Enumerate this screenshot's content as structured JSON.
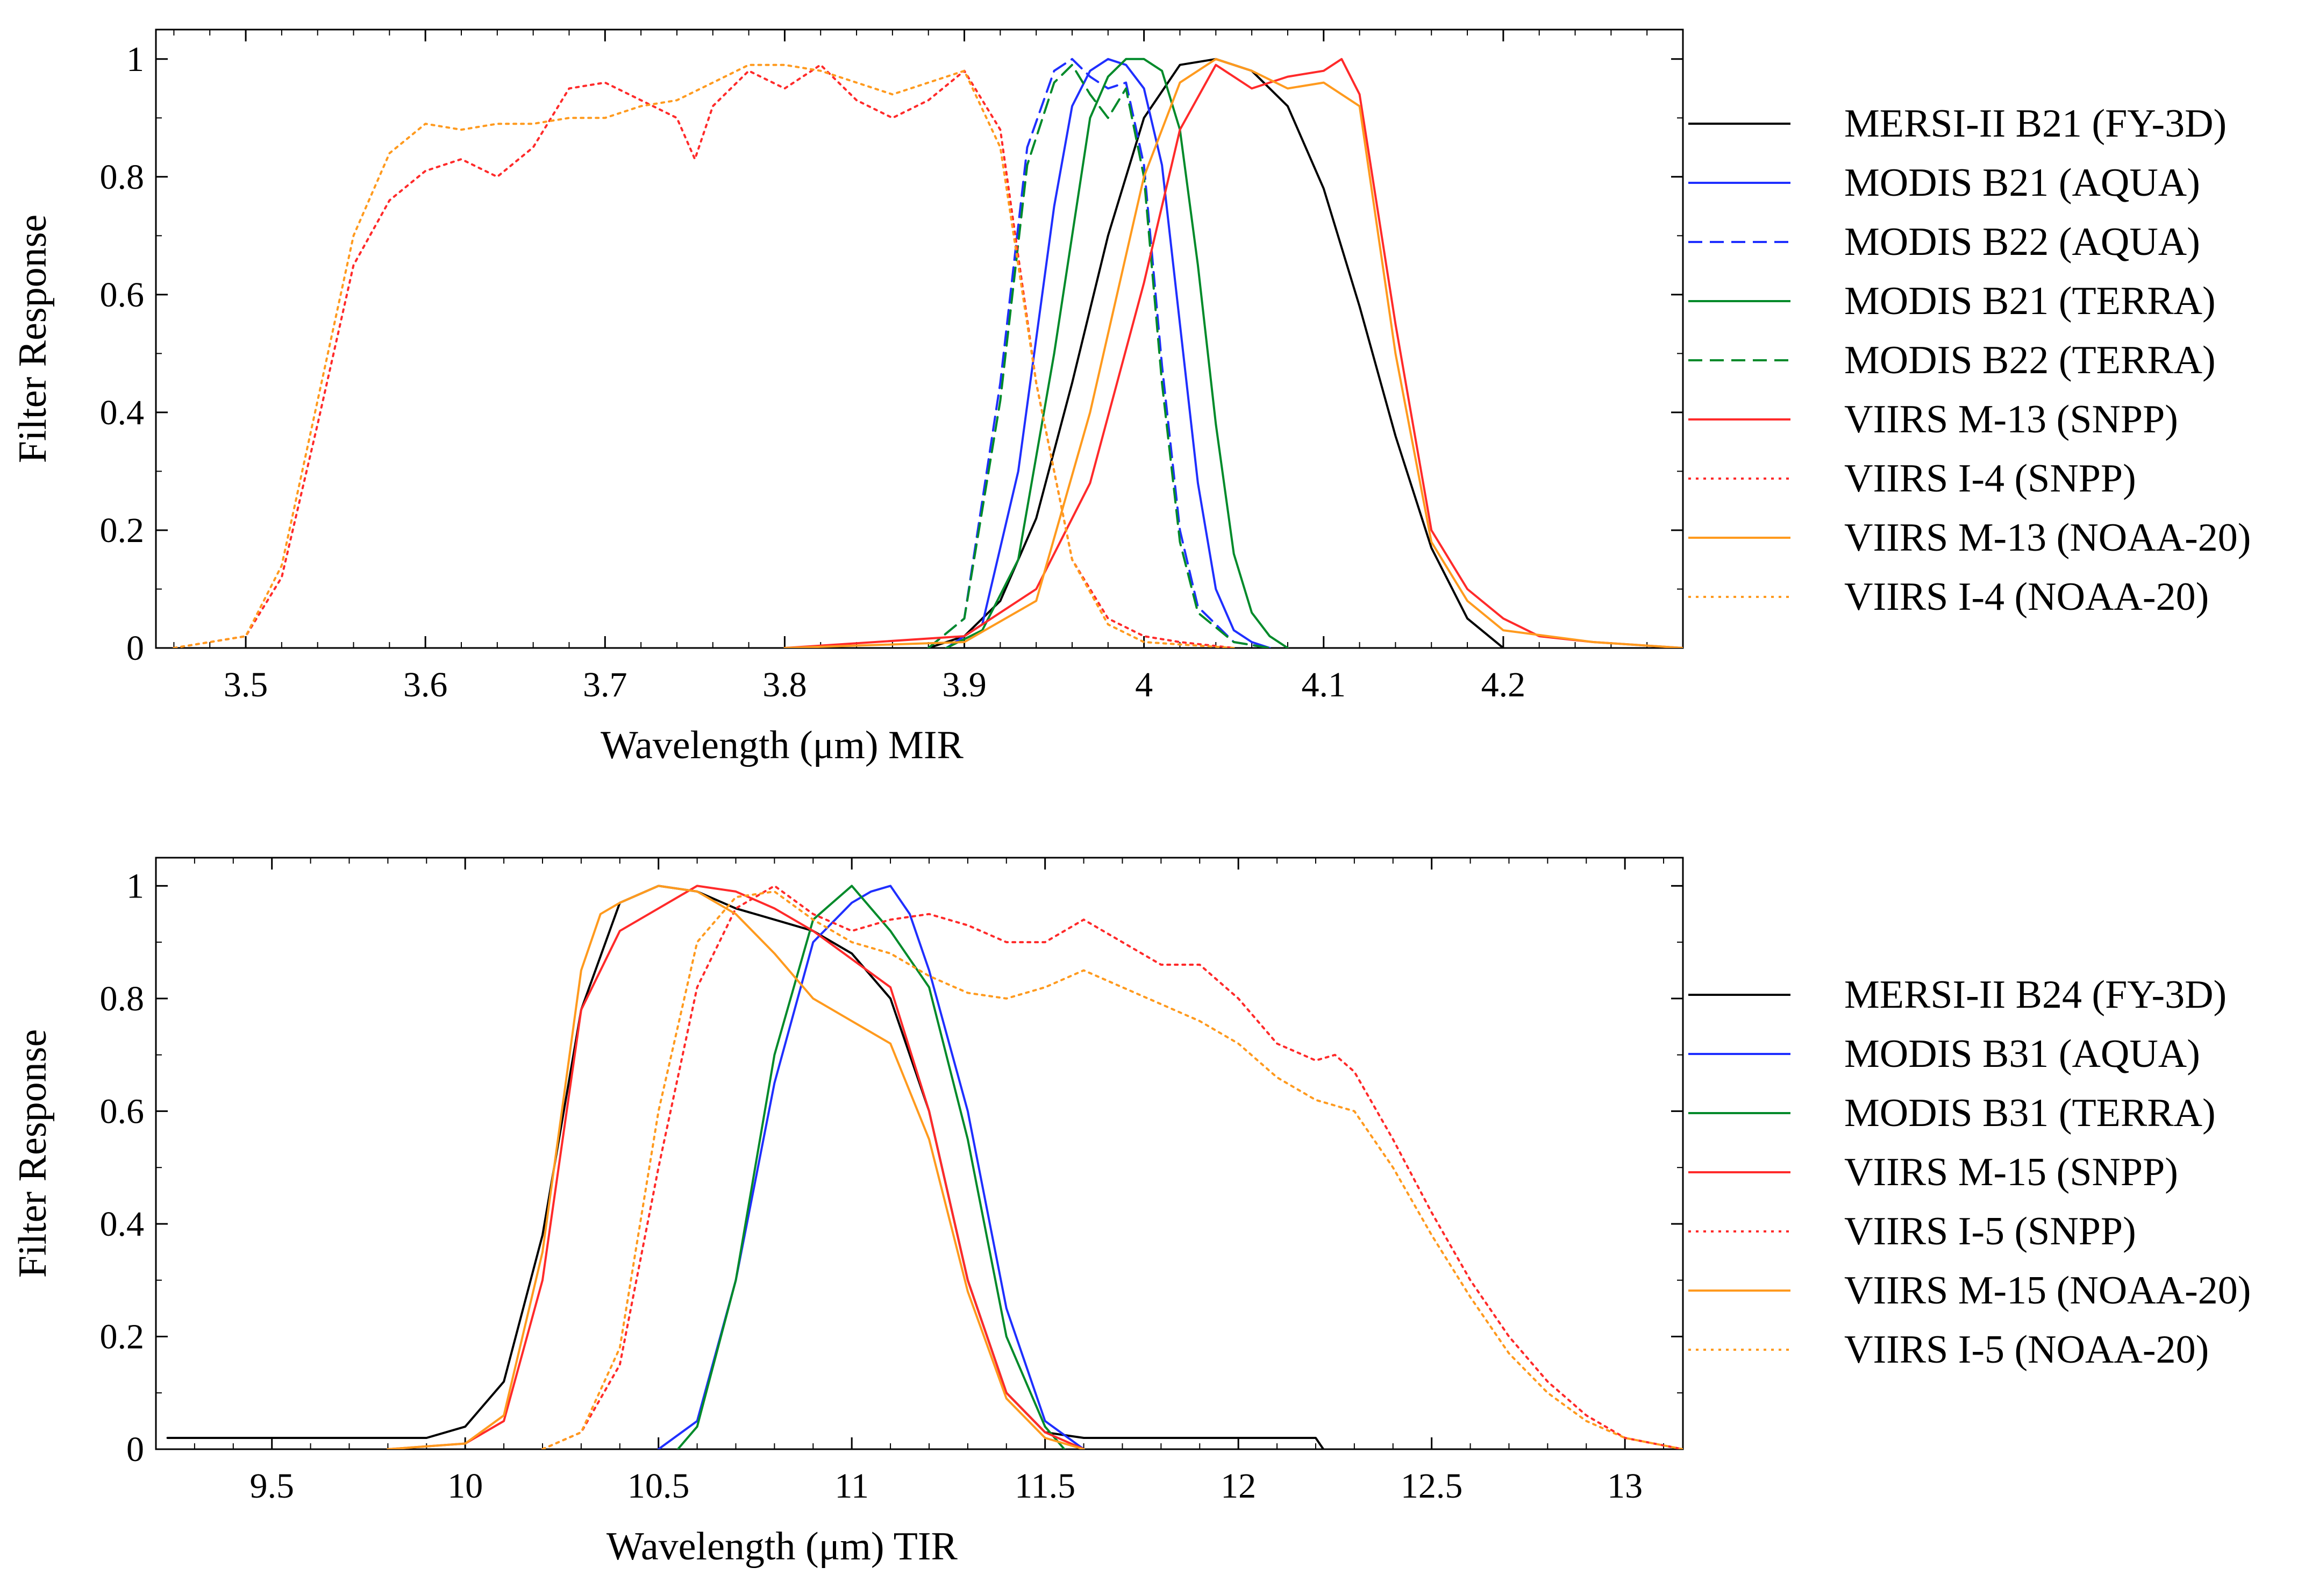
{
  "colors": {
    "black": "#000000",
    "blue": "#1f2fff",
    "green": "#008a2a",
    "red": "#ff2a2a",
    "orange": "#ff9a1e"
  },
  "chart_data": [
    {
      "id": "mir",
      "type": "line",
      "title": "",
      "xlabel": "Wavelength (μm) MIR",
      "ylabel": "Filter Response",
      "xlim": [
        3.45,
        4.3
      ],
      "ylim": [
        0,
        1.05
      ],
      "xticks": [
        3.5,
        3.6,
        3.7,
        3.8,
        3.9,
        4.0,
        4.1,
        4.2
      ],
      "xtick_labels": [
        "3.5",
        "3.6",
        "3.7",
        "3.8",
        "3.9",
        "4",
        "4.1",
        "4.2"
      ],
      "yticks": [
        0,
        0.2,
        0.4,
        0.6,
        0.8,
        1
      ],
      "ytick_labels": [
        "0",
        "0.2",
        "0.4",
        "0.6",
        "0.8",
        "1"
      ],
      "legend_position": "right",
      "series": [
        {
          "name": "MERSI-II B21 (FY-3D)",
          "color": "black",
          "dash": "solid",
          "x": [
            3.88,
            3.9,
            3.92,
            3.94,
            3.96,
            3.98,
            4.0,
            4.02,
            4.04,
            4.06,
            4.08,
            4.1,
            4.12,
            4.14,
            4.16,
            4.18,
            4.2
          ],
          "y": [
            0.0,
            0.02,
            0.08,
            0.22,
            0.45,
            0.7,
            0.9,
            0.99,
            1.0,
            0.98,
            0.92,
            0.78,
            0.58,
            0.36,
            0.17,
            0.05,
            0.0
          ]
        },
        {
          "name": "MODIS B21 (AQUA)",
          "color": "blue",
          "dash": "solid",
          "x": [
            3.89,
            3.91,
            3.93,
            3.95,
            3.96,
            3.97,
            3.98,
            3.99,
            4.0,
            4.01,
            4.02,
            4.03,
            4.04,
            4.05,
            4.06,
            4.07
          ],
          "y": [
            0.0,
            0.04,
            0.3,
            0.75,
            0.92,
            0.98,
            1.0,
            0.99,
            0.95,
            0.82,
            0.55,
            0.28,
            0.1,
            0.03,
            0.01,
            0.0
          ]
        },
        {
          "name": "MODIS B22 (AQUA)",
          "color": "blue",
          "dash": "dashed",
          "x": [
            3.88,
            3.9,
            3.92,
            3.935,
            3.95,
            3.96,
            3.97,
            3.98,
            3.99,
            4.0,
            4.01,
            4.02,
            4.03,
            4.05,
            4.07
          ],
          "y": [
            0.0,
            0.05,
            0.45,
            0.85,
            0.98,
            1.0,
            0.97,
            0.95,
            0.96,
            0.82,
            0.48,
            0.2,
            0.07,
            0.01,
            0.0
          ]
        },
        {
          "name": "MODIS B21 (TERRA)",
          "color": "green",
          "dash": "solid",
          "x": [
            3.89,
            3.91,
            3.93,
            3.95,
            3.97,
            3.98,
            3.99,
            4.0,
            4.01,
            4.02,
            4.03,
            4.04,
            4.05,
            4.06,
            4.07,
            4.08
          ],
          "y": [
            0.0,
            0.03,
            0.15,
            0.5,
            0.9,
            0.97,
            1.0,
            1.0,
            0.98,
            0.88,
            0.65,
            0.38,
            0.16,
            0.06,
            0.02,
            0.0
          ]
        },
        {
          "name": "MODIS B22  (TERRA)",
          "color": "green",
          "dash": "dashed",
          "x": [
            3.88,
            3.9,
            3.92,
            3.935,
            3.95,
            3.96,
            3.97,
            3.98,
            3.99,
            4.0,
            4.01,
            4.02,
            4.03,
            4.05,
            4.07
          ],
          "y": [
            0.0,
            0.05,
            0.42,
            0.82,
            0.96,
            0.99,
            0.94,
            0.9,
            0.95,
            0.8,
            0.45,
            0.18,
            0.06,
            0.01,
            0.0
          ]
        },
        {
          "name": "VIIRS M-13 (SNPP)",
          "color": "red",
          "dash": "solid",
          "x": [
            3.8,
            3.9,
            3.94,
            3.97,
            4.0,
            4.02,
            4.04,
            4.06,
            4.08,
            4.1,
            4.11,
            4.12,
            4.14,
            4.16,
            4.18,
            4.2,
            4.22,
            4.25,
            4.3
          ],
          "y": [
            0.0,
            0.02,
            0.1,
            0.28,
            0.62,
            0.88,
            0.99,
            0.95,
            0.97,
            0.98,
            1.0,
            0.94,
            0.55,
            0.2,
            0.1,
            0.05,
            0.02,
            0.01,
            0.0
          ]
        },
        {
          "name": "VIIRS I-4  (SNPP)",
          "color": "red",
          "dash": "dotted",
          "x": [
            3.46,
            3.5,
            3.52,
            3.54,
            3.56,
            3.58,
            3.6,
            3.62,
            3.64,
            3.66,
            3.68,
            3.7,
            3.72,
            3.74,
            3.75,
            3.76,
            3.78,
            3.8,
            3.82,
            3.84,
            3.86,
            3.88,
            3.9,
            3.92,
            3.94,
            3.96,
            3.98,
            4.0,
            4.02,
            4.05
          ],
          "y": [
            0.0,
            0.02,
            0.12,
            0.38,
            0.65,
            0.76,
            0.81,
            0.83,
            0.8,
            0.85,
            0.95,
            0.96,
            0.93,
            0.9,
            0.83,
            0.92,
            0.98,
            0.95,
            0.99,
            0.93,
            0.9,
            0.93,
            0.98,
            0.88,
            0.45,
            0.15,
            0.05,
            0.02,
            0.01,
            0.0
          ]
        },
        {
          "name": "VIIRS M-13 (NOAA-20)",
          "color": "orange",
          "dash": "solid",
          "x": [
            3.8,
            3.9,
            3.94,
            3.97,
            4.0,
            4.02,
            4.04,
            4.06,
            4.08,
            4.1,
            4.12,
            4.14,
            4.16,
            4.18,
            4.2,
            4.25,
            4.3
          ],
          "y": [
            0.0,
            0.01,
            0.08,
            0.4,
            0.8,
            0.96,
            1.0,
            0.98,
            0.95,
            0.96,
            0.92,
            0.5,
            0.18,
            0.08,
            0.03,
            0.01,
            0.0
          ]
        },
        {
          "name": "VIIRS I-4 (NOAA-20)",
          "color": "orange",
          "dash": "dotted",
          "x": [
            3.46,
            3.5,
            3.52,
            3.54,
            3.56,
            3.58,
            3.6,
            3.62,
            3.64,
            3.66,
            3.68,
            3.7,
            3.72,
            3.74,
            3.76,
            3.78,
            3.8,
            3.82,
            3.84,
            3.86,
            3.88,
            3.9,
            3.92,
            3.94,
            3.96,
            3.98,
            4.0,
            4.05
          ],
          "y": [
            0.0,
            0.02,
            0.14,
            0.42,
            0.7,
            0.84,
            0.89,
            0.88,
            0.89,
            0.89,
            0.9,
            0.9,
            0.92,
            0.93,
            0.96,
            0.99,
            0.99,
            0.98,
            0.96,
            0.94,
            0.96,
            0.98,
            0.85,
            0.45,
            0.15,
            0.04,
            0.01,
            0.0
          ]
        }
      ]
    },
    {
      "id": "tir",
      "type": "line",
      "title": "",
      "xlabel": "Wavelength (μm) TIR",
      "ylabel": "Filter Response",
      "xlim": [
        9.2,
        13.15
      ],
      "ylim": [
        0,
        1.05
      ],
      "xticks": [
        9.5,
        10,
        10.5,
        11,
        11.5,
        12,
        12.5,
        13
      ],
      "xtick_labels": [
        "9.5",
        "10",
        "10.5",
        "11",
        "11.5",
        "12",
        "12.5",
        "13"
      ],
      "yticks": [
        0,
        0.2,
        0.4,
        0.6,
        0.8,
        1
      ],
      "ytick_labels": [
        "0",
        "0.2",
        "0.4",
        "0.6",
        "0.8",
        "1"
      ],
      "legend_position": "right",
      "series": [
        {
          "name": "MERSI-II B24 (FY-3D)",
          "color": "black",
          "dash": "solid",
          "x": [
            9.23,
            9.5,
            9.9,
            10.0,
            10.1,
            10.2,
            10.3,
            10.4,
            10.5,
            10.6,
            10.7,
            10.8,
            10.9,
            11.0,
            11.1,
            11.2,
            11.3,
            11.4,
            11.5,
            11.6,
            11.8,
            12.0,
            12.2,
            12.22
          ],
          "y": [
            0.02,
            0.02,
            0.02,
            0.04,
            0.12,
            0.38,
            0.78,
            0.97,
            1.0,
            0.99,
            0.96,
            0.94,
            0.92,
            0.88,
            0.8,
            0.6,
            0.3,
            0.1,
            0.03,
            0.02,
            0.02,
            0.02,
            0.02,
            0.0
          ]
        },
        {
          "name": "MODIS B31 (AQUA)",
          "color": "blue",
          "dash": "solid",
          "x": [
            10.5,
            10.6,
            10.7,
            10.8,
            10.9,
            11.0,
            11.05,
            11.1,
            11.15,
            11.2,
            11.3,
            11.4,
            11.5,
            11.6
          ],
          "y": [
            0.0,
            0.05,
            0.3,
            0.65,
            0.9,
            0.97,
            0.99,
            1.0,
            0.95,
            0.85,
            0.6,
            0.25,
            0.05,
            0.0
          ]
        },
        {
          "name": "MODIS B31 (TERRA)",
          "color": "green",
          "dash": "solid",
          "x": [
            10.55,
            10.6,
            10.7,
            10.8,
            10.9,
            10.95,
            11.0,
            11.05,
            11.1,
            11.2,
            11.3,
            11.4,
            11.5,
            11.55
          ],
          "y": [
            0.0,
            0.04,
            0.3,
            0.7,
            0.94,
            0.97,
            1.0,
            0.96,
            0.92,
            0.82,
            0.55,
            0.2,
            0.04,
            0.0
          ]
        },
        {
          "name": "VIIRS M-15 (SNPP)",
          "color": "red",
          "dash": "solid",
          "x": [
            9.8,
            10.0,
            10.1,
            10.2,
            10.3,
            10.4,
            10.5,
            10.6,
            10.7,
            10.8,
            10.9,
            11.0,
            11.1,
            11.2,
            11.3,
            11.4,
            11.5,
            11.6
          ],
          "y": [
            0.0,
            0.01,
            0.05,
            0.3,
            0.78,
            0.92,
            0.96,
            1.0,
            0.99,
            0.96,
            0.92,
            0.87,
            0.82,
            0.6,
            0.3,
            0.1,
            0.03,
            0.0
          ]
        },
        {
          "name": "VIIRS I-5 (SNPP)",
          "color": "red",
          "dash": "dotted",
          "x": [
            10.2,
            10.3,
            10.4,
            10.5,
            10.6,
            10.7,
            10.8,
            10.9,
            11.0,
            11.1,
            11.2,
            11.3,
            11.4,
            11.5,
            11.6,
            11.7,
            11.8,
            11.9,
            12.0,
            12.1,
            12.2,
            12.25,
            12.3,
            12.4,
            12.5,
            12.6,
            12.7,
            12.8,
            12.9,
            13.0,
            13.15
          ],
          "y": [
            0.0,
            0.03,
            0.15,
            0.5,
            0.82,
            0.96,
            1.0,
            0.95,
            0.92,
            0.94,
            0.95,
            0.93,
            0.9,
            0.9,
            0.94,
            0.9,
            0.86,
            0.86,
            0.8,
            0.72,
            0.69,
            0.7,
            0.67,
            0.55,
            0.42,
            0.3,
            0.2,
            0.12,
            0.06,
            0.02,
            0.0
          ]
        },
        {
          "name": "VIIRS M-15 (NOAA-20)",
          "color": "orange",
          "dash": "solid",
          "x": [
            9.8,
            10.0,
            10.1,
            10.2,
            10.3,
            10.35,
            10.4,
            10.5,
            10.6,
            10.7,
            10.8,
            10.9,
            11.0,
            11.1,
            11.2,
            11.3,
            11.4,
            11.5,
            11.6
          ],
          "y": [
            0.0,
            0.01,
            0.06,
            0.35,
            0.85,
            0.95,
            0.97,
            1.0,
            0.99,
            0.95,
            0.88,
            0.8,
            0.76,
            0.72,
            0.55,
            0.28,
            0.09,
            0.02,
            0.0
          ]
        },
        {
          "name": "VIIRS I-5 (NOAA-20)",
          "color": "orange",
          "dash": "dotted",
          "x": [
            10.2,
            10.3,
            10.4,
            10.5,
            10.6,
            10.7,
            10.8,
            10.9,
            11.0,
            11.1,
            11.2,
            11.3,
            11.4,
            11.5,
            11.6,
            11.7,
            11.8,
            11.9,
            12.0,
            12.1,
            12.2,
            12.3,
            12.4,
            12.5,
            12.6,
            12.7,
            12.8,
            12.9,
            13.0,
            13.15
          ],
          "y": [
            0.0,
            0.03,
            0.18,
            0.6,
            0.9,
            0.98,
            0.99,
            0.94,
            0.9,
            0.88,
            0.84,
            0.81,
            0.8,
            0.82,
            0.85,
            0.82,
            0.79,
            0.76,
            0.72,
            0.66,
            0.62,
            0.6,
            0.5,
            0.38,
            0.27,
            0.17,
            0.1,
            0.05,
            0.02,
            0.0
          ]
        }
      ]
    }
  ]
}
